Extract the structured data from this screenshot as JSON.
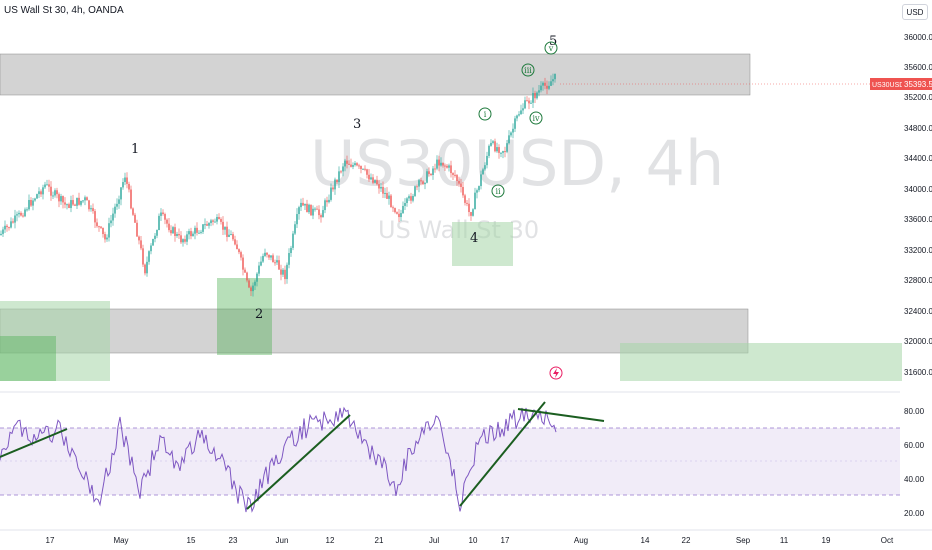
{
  "header": {
    "symbol_text": "US Wall St 30, 4h, OANDA"
  },
  "currency_button": "USD",
  "watermark": {
    "main": "US30USD, 4h",
    "sub": "US Wall St 30"
  },
  "price_axis": {
    "ticks": [
      "36000.0",
      "35600.0",
      "35200.0",
      "34800.0",
      "34400.0",
      "34000.0",
      "33600.0",
      "33200.0",
      "32800.0",
      "32400.0",
      "32000.0",
      "31600.0"
    ],
    "current_symbol": "US30USD",
    "current_price": "35393.5",
    "current_price_value": 35393.5
  },
  "rsi_axis": {
    "ticks": [
      "80.00",
      "60.00",
      "40.00",
      "20.00"
    ]
  },
  "time_axis": {
    "ticks": [
      "17",
      "May",
      "15",
      "23",
      "Jun",
      "12",
      "21",
      "Jul",
      "10",
      "17",
      "Aug",
      "14",
      "22",
      "Sep",
      "11",
      "19",
      "Oct"
    ]
  },
  "wave_labels": {
    "main": [
      "1",
      "2",
      "3",
      "4",
      "5"
    ],
    "sub": [
      "i",
      "ii",
      "iii",
      "iv",
      "v"
    ]
  },
  "colors": {
    "up_candle": "#26a69a",
    "down_candle": "#ef5350",
    "gray_zone": "#9e9e9e",
    "green_zone": "#a5d6a7",
    "dark_green_zone": "#4caf50",
    "rsi_line": "#7e57c2",
    "rsi_band": "#ede7f6",
    "trendline": "#1b5e20",
    "current_price_label": "#ef5350"
  },
  "icons": [
    "lightning-icon"
  ]
}
